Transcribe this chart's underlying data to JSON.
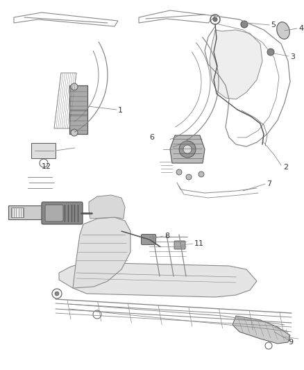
{
  "bg_color": "#ffffff",
  "lc": "#888888",
  "dc": "#555555",
  "label_color": "#333333",
  "label_fs": 8,
  "figsize": [
    4.38,
    5.33
  ],
  "dpi": 100
}
